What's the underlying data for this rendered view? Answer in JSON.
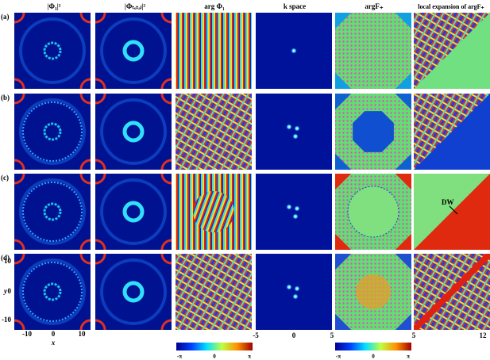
{
  "column_headers": [
    "|Φ₁|²",
    "|Φₜₒₜₐₗ|²",
    "arg Φ₁",
    "k space",
    "argF₊",
    "local expansion of argF₊"
  ],
  "row_labels": [
    "(a)",
    "(b)",
    "(c)",
    "(d)"
  ],
  "axes": {
    "y_label": "y",
    "y_ticks": [
      "10",
      "0",
      "-10"
    ],
    "x_label": "x",
    "x_ticks": [
      "-10",
      "0",
      "10"
    ]
  },
  "k_space_ticks": [
    "-5",
    "0",
    "5"
  ],
  "expansion_ticks": [
    "5",
    "12"
  ],
  "colorbars": [
    {
      "labels": [
        "-π",
        "0",
        "π"
      ]
    },
    {
      "labels": [
        "-π",
        "0",
        "π"
      ]
    }
  ],
  "annotation": "DW"
}
